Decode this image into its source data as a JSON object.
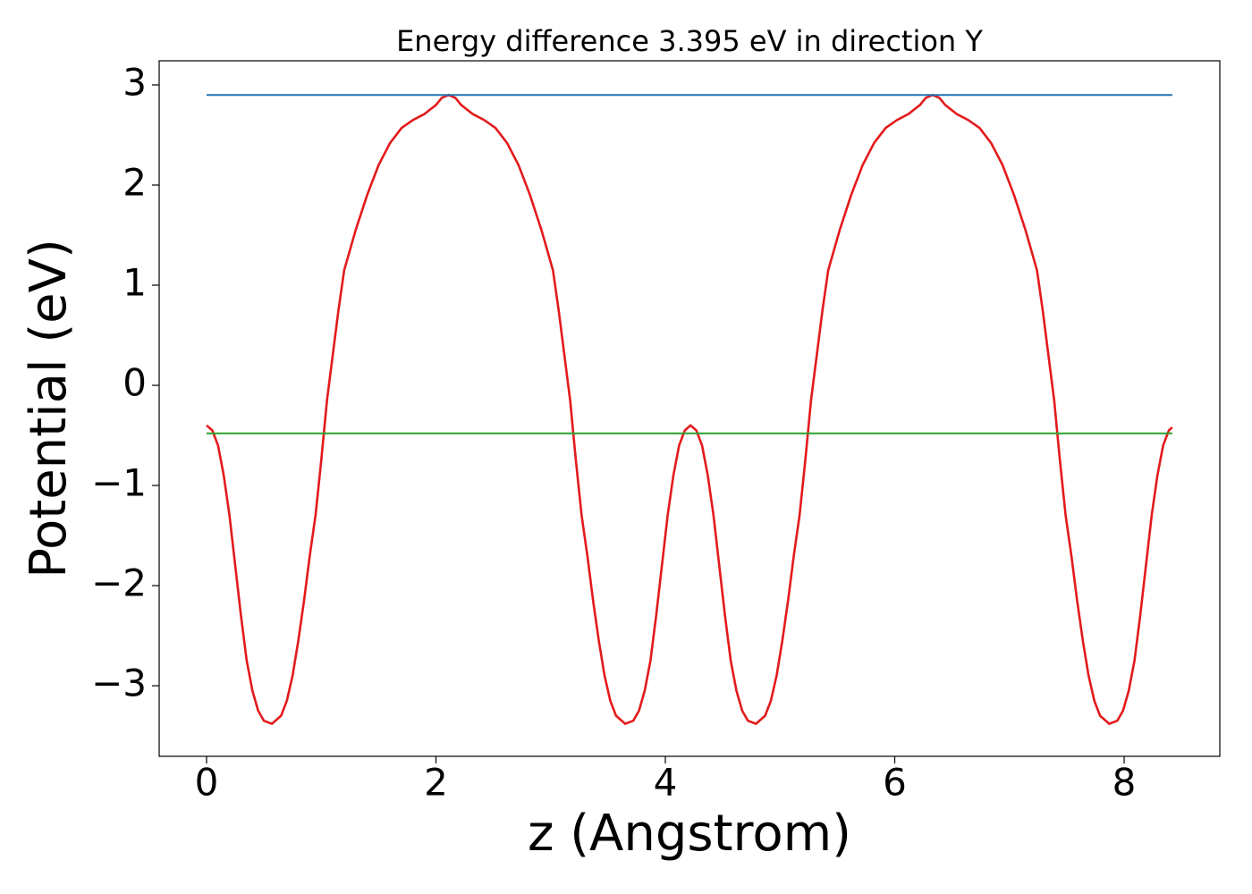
{
  "chart_data": {
    "type": "line",
    "title": "Energy difference 3.395 eV in direction Y",
    "x_label": "z (Angstrom)",
    "y_label": "Potential (eV)",
    "xlim": [
      -0.413,
      8.834
    ],
    "ylim": [
      -3.705,
      3.241
    ],
    "xticks": [
      0,
      2,
      4,
      6,
      8
    ],
    "yticks": [
      {
        "value": -3,
        "label": "−3"
      },
      {
        "value": -2,
        "label": "−2"
      },
      {
        "value": -1,
        "label": "−1"
      },
      0,
      1,
      2,
      3
    ],
    "series": [
      {
        "color": "#e31a1c",
        "x": [
          0,
          0.05,
          0.1,
          0.15,
          0.2,
          0.25,
          0.3,
          0.35,
          0.4,
          0.45,
          0.5,
          0.57,
          0.65,
          0.7,
          0.75,
          0.8,
          0.85,
          0.9,
          0.95,
          1.0,
          1.05,
          1.1,
          1.15,
          1.2,
          1.3,
          1.4,
          1.5,
          1.6,
          1.7,
          1.8,
          1.9,
          2.0,
          2.05,
          2.11,
          2.17,
          2.22,
          2.32,
          2.42,
          2.52,
          2.62,
          2.72,
          2.82,
          2.92,
          3.02,
          3.07,
          3.12,
          3.17,
          3.22,
          3.27,
          3.32,
          3.37,
          3.42,
          3.47,
          3.52,
          3.57,
          3.65,
          3.72,
          3.77,
          3.82,
          3.87,
          3.92,
          3.97,
          4.02,
          4.07,
          4.12,
          4.17,
          4.22,
          4.27,
          4.32,
          4.37,
          4.42,
          4.47,
          4.52,
          4.57,
          4.62,
          4.67,
          4.72,
          4.79,
          4.87,
          4.92,
          4.97,
          5.02,
          5.07,
          5.12,
          5.17,
          5.22,
          5.27,
          5.32,
          5.37,
          5.42,
          5.52,
          5.62,
          5.72,
          5.82,
          5.92,
          6.02,
          6.12,
          6.22,
          6.27,
          6.33,
          6.39,
          6.44,
          6.54,
          6.64,
          6.74,
          6.84,
          6.94,
          7.04,
          7.14,
          7.24,
          7.29,
          7.34,
          7.39,
          7.44,
          7.49,
          7.54,
          7.59,
          7.64,
          7.69,
          7.74,
          7.79,
          7.87,
          7.94,
          7.99,
          8.04,
          8.09,
          8.14,
          8.19,
          8.24,
          8.29,
          8.34,
          8.39,
          8.42
        ],
        "values": [
          -0.4,
          -0.45,
          -0.6,
          -0.9,
          -1.3,
          -1.8,
          -2.3,
          -2.75,
          -3.05,
          -3.25,
          -3.35,
          -3.38,
          -3.3,
          -3.15,
          -2.9,
          -2.55,
          -2.15,
          -1.7,
          -1.3,
          -0.75,
          -0.15,
          0.3,
          0.75,
          1.15,
          1.55,
          1.9,
          2.2,
          2.42,
          2.57,
          2.65,
          2.71,
          2.8,
          2.87,
          2.9,
          2.87,
          2.8,
          2.71,
          2.65,
          2.57,
          2.42,
          2.2,
          1.9,
          1.55,
          1.15,
          0.75,
          0.3,
          -0.15,
          -0.75,
          -1.3,
          -1.7,
          -2.15,
          -2.55,
          -2.9,
          -3.15,
          -3.3,
          -3.38,
          -3.35,
          -3.25,
          -3.05,
          -2.75,
          -2.3,
          -1.8,
          -1.3,
          -0.9,
          -0.6,
          -0.45,
          -0.4,
          -0.45,
          -0.6,
          -0.9,
          -1.3,
          -1.8,
          -2.3,
          -2.75,
          -3.05,
          -3.25,
          -3.35,
          -3.38,
          -3.3,
          -3.15,
          -2.9,
          -2.55,
          -2.15,
          -1.7,
          -1.3,
          -0.75,
          -0.15,
          0.3,
          0.75,
          1.15,
          1.55,
          1.9,
          2.2,
          2.42,
          2.57,
          2.65,
          2.71,
          2.8,
          2.87,
          2.9,
          2.87,
          2.8,
          2.71,
          2.65,
          2.57,
          2.42,
          2.2,
          1.9,
          1.55,
          1.15,
          0.75,
          0.3,
          -0.15,
          -0.75,
          -1.3,
          -1.7,
          -2.15,
          -2.55,
          -2.9,
          -3.15,
          -3.3,
          -3.38,
          -3.35,
          -3.25,
          -3.05,
          -2.75,
          -2.3,
          -1.8,
          -1.3,
          -0.9,
          -0.6,
          -0.45,
          -0.42
        ]
      },
      {
        "color": "#1f77b4",
        "x": [
          0,
          8.42
        ],
        "values": [
          2.9,
          2.9
        ]
      },
      {
        "color": "#2ca02c",
        "x": [
          0,
          8.42
        ],
        "values": [
          -0.48,
          -0.48
        ]
      }
    ]
  }
}
